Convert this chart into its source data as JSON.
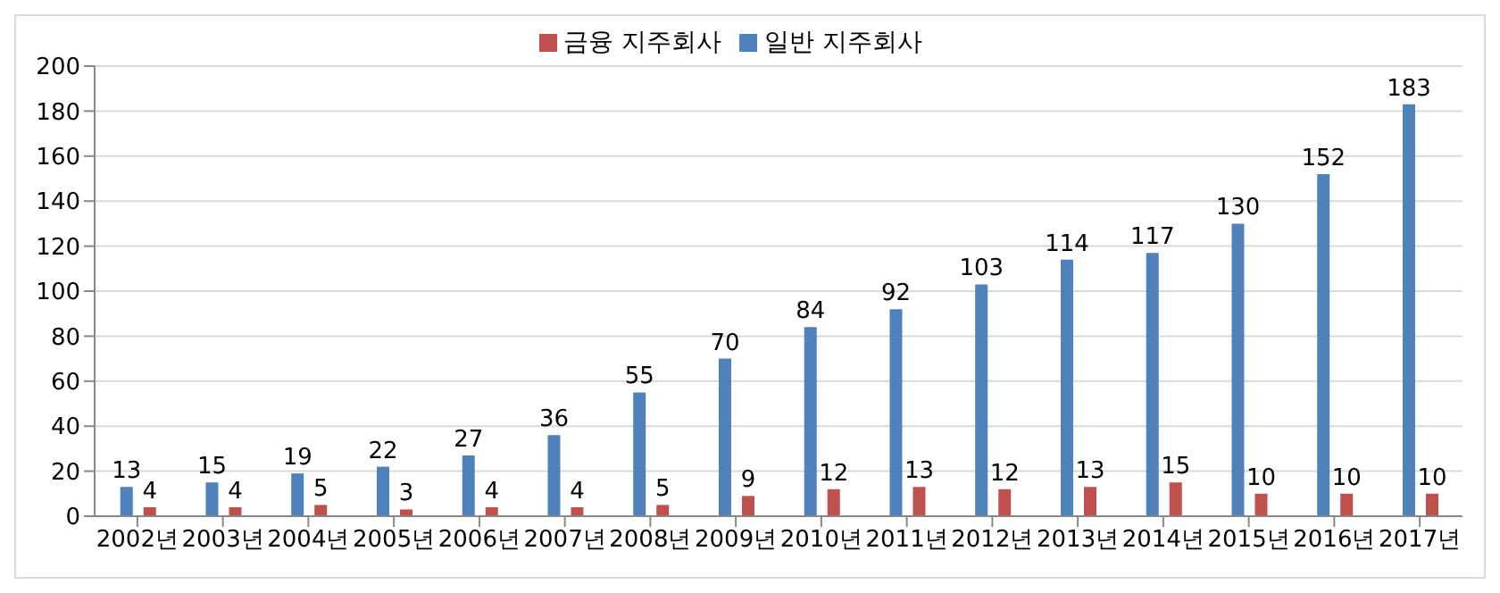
{
  "chart_data": {
    "type": "bar",
    "categories": [
      "2002년",
      "2003년",
      "2004년",
      "2005년",
      "2006년",
      "2007년",
      "2008년",
      "2009년",
      "2010년",
      "2011년",
      "2012년",
      "2013년",
      "2014년",
      "2015년",
      "2016년",
      "2017년"
    ],
    "series": [
      {
        "name": "일반 지주회사",
        "color": "#4f81bd",
        "values": [
          13,
          15,
          19,
          22,
          27,
          36,
          55,
          70,
          84,
          92,
          103,
          114,
          117,
          130,
          152,
          183
        ]
      },
      {
        "name": "금융 지주회사",
        "color": "#c0504d",
        "values": [
          4,
          4,
          5,
          3,
          4,
          4,
          5,
          9,
          12,
          13,
          12,
          13,
          15,
          10,
          10,
          10
        ]
      }
    ],
    "ylim": [
      0,
      200
    ],
    "yticks": [
      0,
      20,
      40,
      60,
      80,
      100,
      120,
      140,
      160,
      180,
      200
    ],
    "grid": "y",
    "legend": "top",
    "data_labels": true
  }
}
